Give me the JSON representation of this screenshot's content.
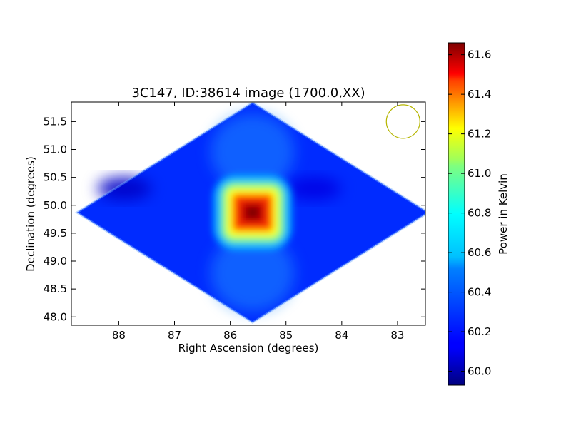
{
  "chart_data": {
    "type": "heatmap",
    "title": "3C147, ID:38614 image (1700.0,XX)",
    "xlabel": "Right Ascension (degrees)",
    "ylabel": "Declination (degrees)",
    "xlim": [
      88.85,
      82.5
    ],
    "ylim": [
      47.85,
      51.85
    ],
    "x_ticks": [
      88,
      87,
      86,
      85,
      84,
      83
    ],
    "y_ticks": [
      48.0,
      48.5,
      49.0,
      49.5,
      50.0,
      50.5,
      51.0,
      51.5
    ],
    "x_tick_labels": [
      "88",
      "87",
      "86",
      "85",
      "84",
      "83"
    ],
    "y_tick_labels": [
      "48.0",
      "48.5",
      "49.0",
      "49.5",
      "50.0",
      "50.5",
      "51.0",
      "51.5"
    ],
    "map_extent": {
      "ra_center": 85.6,
      "dec_center": 49.87,
      "ra_half_width": 3.15,
      "dec_half_height": 1.97
    },
    "background_value": 60.22,
    "peak": {
      "ra": 85.6,
      "dec": 49.87,
      "value": 61.66
    },
    "dark_regions": [
      {
        "ra": 87.9,
        "dec": 50.3,
        "value": 60.05
      },
      {
        "ra": 84.5,
        "dec": 50.3,
        "value": 60.1
      }
    ],
    "beam_marker": {
      "ra": 82.9,
      "dec": 51.5,
      "radius_deg": 0.3,
      "color": "#b5b500"
    },
    "colorbar": {
      "label": "Power in Kelvin",
      "min": 59.93,
      "max": 61.66,
      "ticks": [
        60.0,
        60.2,
        60.4,
        60.6,
        60.8,
        61.0,
        61.2,
        61.4,
        61.6
      ],
      "tick_labels": [
        "60.0",
        "60.2",
        "60.4",
        "60.6",
        "60.8",
        "61.0",
        "61.2",
        "61.4",
        "61.6"
      ],
      "colormap": "jet"
    },
    "grid": false
  }
}
